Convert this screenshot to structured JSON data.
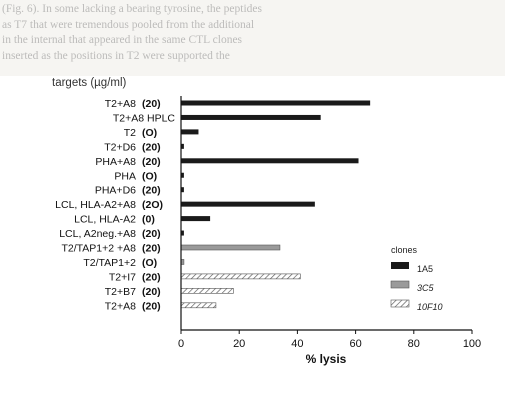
{
  "background_text": [
    "(Fig. 6). In some lacking a bearing tyrosine, the peptides",
    "as T7 that were tremendous pooled from the additional",
    "in the internal that appeared in the same CTL clones",
    "inserted as the positions in T2 were supported the"
  ],
  "chart_data": {
    "type": "bar",
    "orientation": "horizontal",
    "ylabel": "targets (µg/ml)",
    "xlabel": "% lysis",
    "xlim": [
      0,
      100
    ],
    "xticks": [
      "0",
      "20",
      "40",
      "60",
      "80",
      "100"
    ],
    "legend": {
      "title": "clones",
      "position": "right-inside",
      "entries": [
        {
          "name": "1A5",
          "color": "#1a1a1a",
          "pattern": "solid"
        },
        {
          "name": "3C5",
          "color": "#9a9a9a",
          "pattern": "gray"
        },
        {
          "name": "10F10",
          "color": "#ffffff",
          "pattern": "hatch"
        }
      ]
    },
    "categories": [
      {
        "label": "T2+A8",
        "conc": "(20)",
        "value": 65,
        "clone": "1A5"
      },
      {
        "label": "T2+A8 HPLC",
        "conc": "",
        "value": 48,
        "clone": "1A5"
      },
      {
        "label": "T2",
        "conc": "(O)",
        "value": 6,
        "clone": "1A5"
      },
      {
        "label": "T2+D6",
        "conc": "(20)",
        "value": 1,
        "clone": "1A5"
      },
      {
        "label": "PHA+A8",
        "conc": "(20)",
        "value": 61,
        "clone": "1A5"
      },
      {
        "label": "PHA",
        "conc": "(O)",
        "value": 1,
        "clone": "1A5"
      },
      {
        "label": "PHA+D6",
        "conc": "(20)",
        "value": 1,
        "clone": "1A5"
      },
      {
        "label": "LCL, HLA-A2+A8",
        "conc": "(2O)",
        "value": 46,
        "clone": "1A5"
      },
      {
        "label": "LCL, HLA-A2",
        "conc": "(0)",
        "value": 10,
        "clone": "1A5"
      },
      {
        "label": "LCL, A2neg.+A8",
        "conc": "(20)",
        "value": 1,
        "clone": "1A5"
      },
      {
        "label": "T2/TAP1+2 +A8",
        "conc": "(20)",
        "value": 34,
        "clone": "3C5"
      },
      {
        "label": "T2/TAP1+2",
        "conc": "(O)",
        "value": 1,
        "clone": "3C5"
      },
      {
        "label": "T2+I7",
        "conc": "(20)",
        "value": 41,
        "clone": "10F10"
      },
      {
        "label": "T2+B7",
        "conc": "(20)",
        "value": 18,
        "clone": "10F10"
      },
      {
        "label": "T2+A8",
        "conc": "(20)",
        "value": 12,
        "clone": "10F10"
      }
    ]
  }
}
